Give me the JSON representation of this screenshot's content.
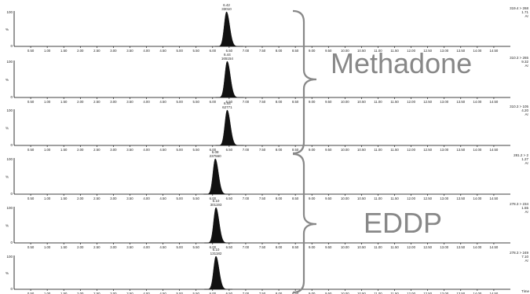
{
  "time_unit_label": "Time",
  "groups": [
    {
      "label": "Methadone",
      "channels": [
        0,
        1,
        2
      ]
    },
    {
      "label": "EDDP",
      "channels": [
        3,
        4,
        5
      ]
    }
  ],
  "colors": {
    "peak": "#111111",
    "axis": "#000000",
    "brace": "#888888",
    "text": "#222222",
    "label": "#888888"
  },
  "chart_data": [
    {
      "type": "line",
      "panel": 1,
      "x_ticks": [
        "0.50",
        "1.00",
        "1.50",
        "2.00",
        "2.50",
        "3.00",
        "3.50",
        "4.00",
        "4.50",
        "5.00",
        "5.50",
        "6.00",
        "6.50",
        "7.00",
        "7.50",
        "8.00",
        "8.50",
        "9.00",
        "9.50",
        "10.00",
        "10.50",
        "11.00",
        "11.50",
        "12.00",
        "12.50",
        "13.00",
        "13.50",
        "14.00",
        "14.50"
      ],
      "xlim": [
        0,
        15
      ],
      "ylim": [
        0,
        100
      ],
      "y_ticks": [
        "100",
        "0"
      ],
      "ylabel": "%",
      "transition": "319.4 > 268",
      "transition_info": [
        "1.71",
        "Ar"
      ],
      "peak": {
        "rt": 6.42,
        "area": "33010",
        "rt_label": "6.42",
        "height": 100
      }
    },
    {
      "type": "line",
      "panel": 2,
      "x_ticks": [
        "0.50",
        "1.00",
        "1.50",
        "2.00",
        "2.50",
        "3.00",
        "3.50",
        "4.00",
        "4.50",
        "5.00",
        "5.50",
        "6.00",
        "6.50",
        "7.00",
        "7.50",
        "8.00",
        "8.50",
        "9.00",
        "9.50",
        "10.00",
        "10.50",
        "11.00",
        "11.50",
        "12.00",
        "12.50",
        "13.00",
        "13.50",
        "14.00",
        "14.50"
      ],
      "xlim": [
        0,
        15
      ],
      "ylim": [
        0,
        100
      ],
      "y_ticks": [
        "100",
        "0"
      ],
      "ylabel": "%",
      "transition": "310.3 > 265",
      "transition_info": [
        "9.32",
        "Ar"
      ],
      "peak": {
        "rt": 6.44,
        "area": "165154",
        "rt_label": "6.44",
        "height": 100
      }
    },
    {
      "type": "line",
      "panel": 3,
      "x_ticks": [
        "0.50",
        "1.00",
        "1.50",
        "2.00",
        "2.50",
        "3.00",
        "3.50",
        "4.00",
        "4.50",
        "5.00",
        "5.50",
        "6.00",
        "6.50",
        "7.00",
        "7.50",
        "8.00",
        "8.50",
        "9.00",
        "9.50",
        "10.00",
        "10.50",
        "11.00",
        "11.50",
        "12.00",
        "12.50",
        "13.00",
        "13.50",
        "14.00",
        "14.50"
      ],
      "xlim": [
        0,
        15
      ],
      "ylim": [
        0,
        100
      ],
      "y_ticks": [
        "100",
        "0"
      ],
      "ylabel": "%",
      "transition": "310.3 > 105",
      "transition_info": [
        "4.20",
        "Ar"
      ],
      "peak": {
        "rt": 6.44,
        "area": "62771",
        "rt_label": "6.44",
        "height": 100
      }
    },
    {
      "type": "line",
      "panel": 4,
      "x_ticks": [
        "0.50",
        "1.00",
        "1.50",
        "2.00",
        "2.50",
        "3.00",
        "3.50",
        "4.00",
        "4.50",
        "5.00",
        "5.50",
        "6.00",
        "6.50",
        "7.00",
        "7.50",
        "8.00",
        "8.50",
        "9.00",
        "9.50",
        "10.00",
        "10.50",
        "11.00",
        "11.50",
        "12.00",
        "12.50",
        "13.00",
        "13.50",
        "14.00",
        "14.50"
      ],
      "xlim": [
        0,
        15
      ],
      "ylim": [
        0,
        100
      ],
      "y_ticks": [
        "100",
        "0"
      ],
      "ylabel": "%",
      "transition": "281.2 > 2",
      "transition_info": [
        "1.27",
        "Ar"
      ],
      "peak": {
        "rt": 6.08,
        "area": "237560",
        "rt_label": "6.08",
        "height": 100
      }
    },
    {
      "type": "line",
      "panel": 5,
      "x_ticks": [
        "0.50",
        "1.00",
        "1.50",
        "2.00",
        "2.50",
        "3.00",
        "3.50",
        "4.00",
        "4.50",
        "5.00",
        "5.50",
        "6.00",
        "6.50",
        "7.00",
        "7.50",
        "8.00",
        "8.50",
        "9.00",
        "9.50",
        "10.00",
        "10.50",
        "11.00",
        "11.50",
        "12.00",
        "12.50",
        "13.00",
        "13.50",
        "14.00",
        "14.50"
      ],
      "xlim": [
        0,
        15
      ],
      "ylim": [
        0,
        100
      ],
      "y_ticks": [
        "100",
        "0"
      ],
      "ylabel": "%",
      "transition": "278.3 > 234",
      "transition_info": [
        "1.55",
        "Ar"
      ],
      "peak": {
        "rt": 6.1,
        "area": "301193",
        "rt_label": "6.10",
        "height": 100
      }
    },
    {
      "type": "line",
      "panel": 6,
      "x_ticks": [
        "0.50",
        "1.00",
        "1.50",
        "2.00",
        "2.50",
        "3.00",
        "3.50",
        "4.00",
        "4.50",
        "5.00",
        "5.50",
        "6.00",
        "6.50",
        "7.00",
        "7.50",
        "8.00",
        "8.50",
        "9.00",
        "9.50",
        "10.00",
        "10.50",
        "11.00",
        "11.50",
        "12.00",
        "12.50",
        "13.00",
        "13.50",
        "14.00",
        "14.50"
      ],
      "xlim": [
        0,
        15
      ],
      "ylim": [
        0,
        100
      ],
      "y_ticks": [
        "100",
        "0"
      ],
      "ylabel": "%",
      "transition": "278.3 > 249",
      "transition_info": [
        "7.10",
        "Ar"
      ],
      "peak": {
        "rt": 6.1,
        "area": "131182",
        "rt_label": "6.10",
        "height": 100
      }
    }
  ]
}
